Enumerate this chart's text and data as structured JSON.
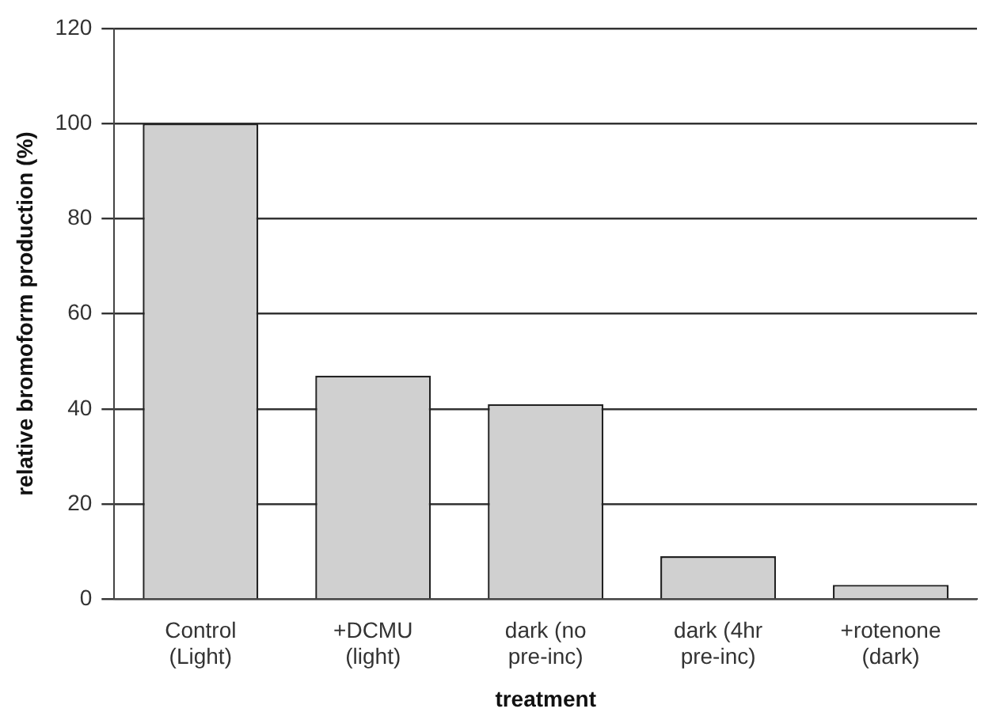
{
  "chart_data": {
    "type": "bar",
    "xlabel": "treatment",
    "ylabel": "relative bromoform production (%)",
    "categories": [
      "Control\n(Light)",
      "+DCMU\n(light)",
      "dark (no\npre-inc)",
      "dark (4hr\npre-inc)",
      "+rotenone\n(dark)"
    ],
    "values": [
      100,
      47,
      41,
      9,
      3
    ],
    "color": "#d0d0d0",
    "ylim": [
      0,
      120
    ],
    "yticks": [
      0,
      20,
      40,
      60,
      80,
      100,
      120
    ],
    "grid": "y",
    "legend": false
  }
}
